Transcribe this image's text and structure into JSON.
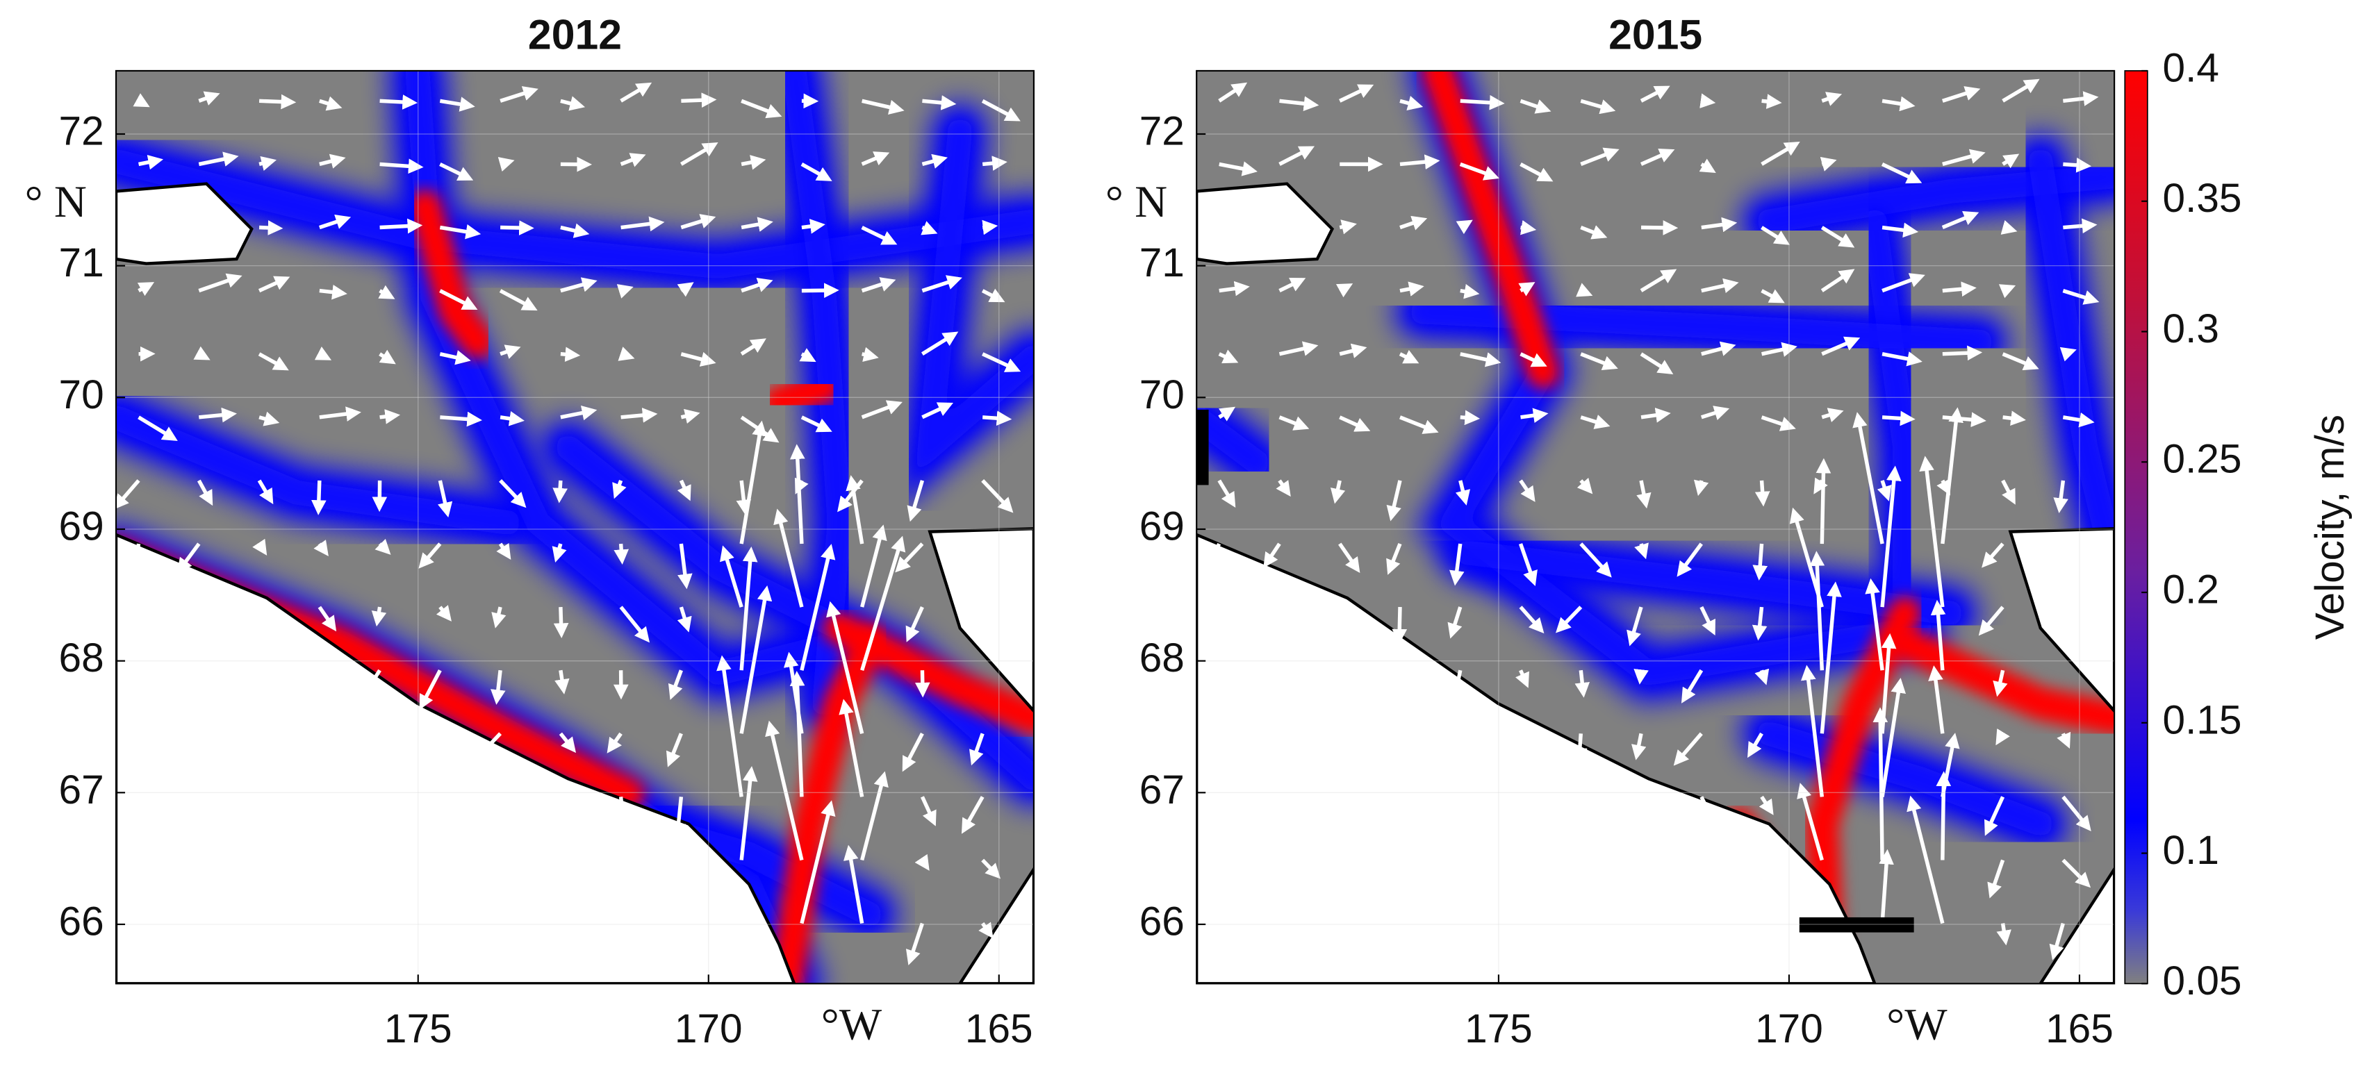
{
  "panels": [
    {
      "title": "2012",
      "xlabel": "°W",
      "ylabel": "° N",
      "xlim": [
        180.2,
        164.4
      ],
      "ylim": [
        65.55,
        72.48
      ],
      "xticks": [
        175,
        170,
        165
      ],
      "yticks": [
        66,
        67,
        68,
        69,
        70,
        71,
        72
      ]
    },
    {
      "title": "2015",
      "xlabel": "°W",
      "ylabel": "° N",
      "xlim": [
        180.2,
        164.4
      ],
      "ylim": [
        65.55,
        72.48
      ],
      "xticks": [
        175,
        170,
        165
      ],
      "yticks": [
        66,
        67,
        68,
        69,
        70,
        71,
        72
      ]
    }
  ],
  "colorbar": {
    "label": "Velocity, m/s",
    "lim": [
      0.05,
      0.4
    ],
    "ticks": [
      0.05,
      0.1,
      0.15,
      0.2,
      0.25,
      0.3,
      0.35,
      0.4
    ]
  }
}
